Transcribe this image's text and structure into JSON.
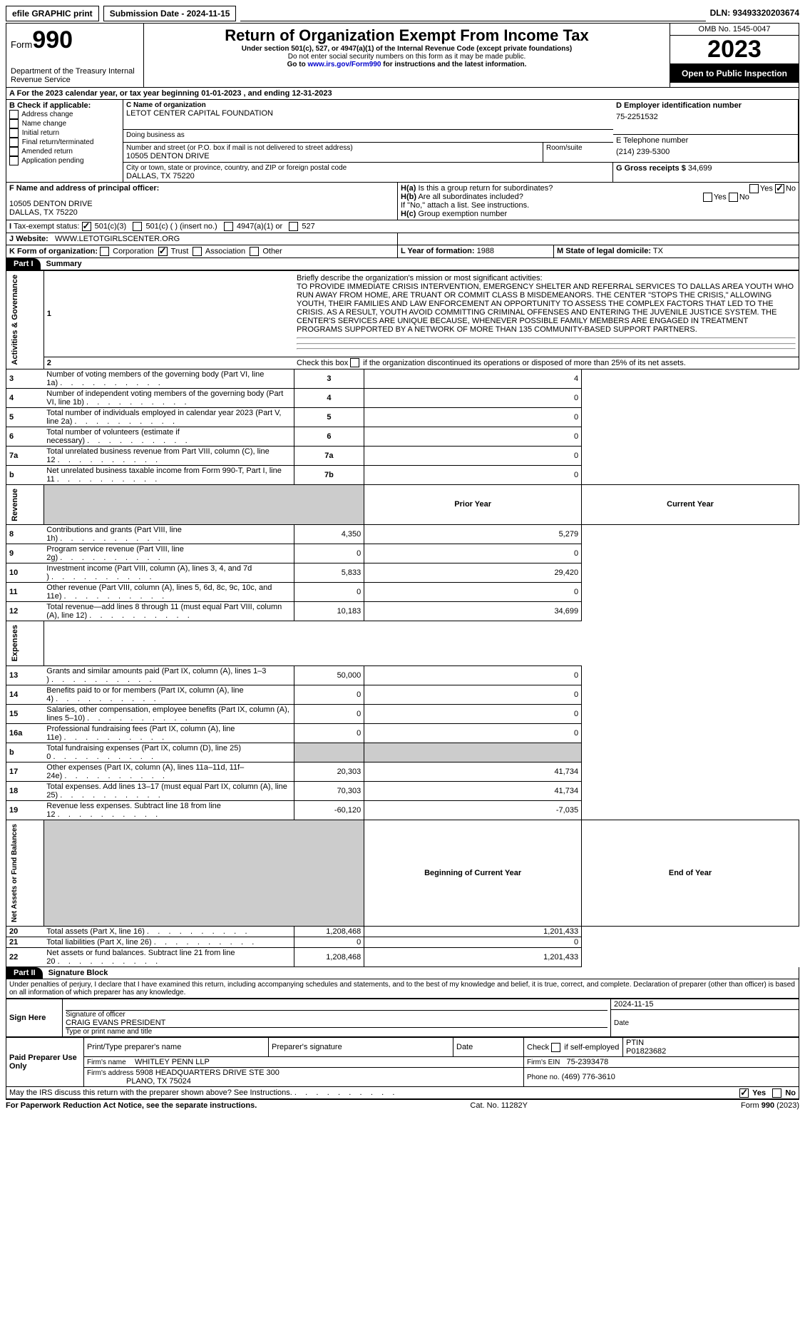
{
  "topbar": {
    "print": "efile GRAPHIC print",
    "sub": "Submission Date - 2024-11-15",
    "dln": "DLN: 93493320203674"
  },
  "header": {
    "form_small": "Form",
    "form_big": "990",
    "dept": "Department of the Treasury Internal Revenue Service",
    "title": "Return of Organization Exempt From Income Tax",
    "sub1": "Under section 501(c), 527, or 4947(a)(1) of the Internal Revenue Code (except private foundations)",
    "sub2": "Do not enter social security numbers on this form as it may be made public.",
    "sub3_pre": "Go to ",
    "sub3_link": "www.irs.gov/Form990",
    "sub3_post": " for instructions and the latest information.",
    "omb": "OMB No. 1545-0047",
    "year": "2023",
    "open": "Open to Public Inspection"
  },
  "A": {
    "text": "For the 2023 calendar year, or tax year beginning 01-01-2023     , and ending 12-31-2023"
  },
  "B": {
    "label": "B Check if applicable:",
    "items": [
      "Address change",
      "Name change",
      "Initial return",
      "Final return/terminated",
      "Amended return",
      "Application pending"
    ]
  },
  "C": {
    "name_lbl": "C Name of organization",
    "name": "LETOT CENTER CAPITAL FOUNDATION",
    "dba_lbl": "Doing business as",
    "dba": "",
    "addr_lbl": "Number and street (or P.O. box if mail is not delivered to street address)",
    "room_lbl": "Room/suite",
    "addr": "10505 DENTON DRIVE",
    "city_lbl": "City or town, state or province, country, and ZIP or foreign postal code",
    "city": "DALLAS, TX  75220"
  },
  "D": {
    "lbl": "D Employer identification number",
    "val": "75-2251532"
  },
  "E": {
    "lbl": "E Telephone number",
    "val": "(214) 239-5300"
  },
  "G": {
    "lbl": "G Gross receipts $",
    "val": "34,699"
  },
  "F": {
    "lbl": "F Name and address of principal officer:",
    "line1": "10505 DENTON DRIVE",
    "line2": "DALLAS, TX  75220"
  },
  "H": {
    "a": "Is this a group return for subordinates?",
    "b": "Are all subordinates included?",
    "note": "If \"No,\" attach a list. See instructions.",
    "c": "Group exemption number"
  },
  "I": {
    "lbl": "Tax-exempt status:",
    "opts": [
      "501(c)(3)",
      "501(c) (  ) (insert no.)",
      "4947(a)(1) or",
      "527"
    ]
  },
  "J": {
    "lbl": "Website:",
    "val": "WWW.LETOTGIRLSCENTER.ORG"
  },
  "K": {
    "lbl": "K Form of organization:",
    "opts": [
      "Corporation",
      "Trust",
      "Association",
      "Other"
    ]
  },
  "L": {
    "lbl": "L Year of formation:",
    "val": "1988"
  },
  "M": {
    "lbl": "M State of legal domicile:",
    "val": "TX"
  },
  "part1": {
    "num": "Part I",
    "title": "Summary"
  },
  "gov": {
    "label": "Activities & Governance",
    "q1_lbl": "Briefly describe the organization's mission or most significant activities:",
    "q1": "TO PROVIDE IMMEDIATE CRISIS INTERVENTION, EMERGENCY SHELTER AND REFERRAL SERVICES TO DALLAS AREA YOUTH WHO RUN AWAY FROM HOME, ARE TRUANT OR COMMIT CLASS B MISDEMEANORS. THE CENTER \"STOPS THE CRISIS,\" ALLOWING YOUTH, THEIR FAMILIES AND LAW ENFORCEMENT AN OPPORTUNITY TO ASSESS THE COMPLEX FACTORS THAT LED TO THE CRISIS. AS A RESULT, YOUTH AVOID COMMITTING CRIMINAL OFFENSES AND ENTERING THE JUVENILE JUSTICE SYSTEM. THE CENTER'S SERVICES ARE UNIQUE BECAUSE, WHENEVER POSSIBLE FAMILY MEMBERS ARE ENGAGED IN TREATMENT PROGRAMS SUPPORTED BY A NETWORK OF MORE THAN 135 COMMUNITY-BASED SUPPORT PARTNERS.",
    "q2": "Check this box      if the organization discontinued its operations or disposed of more than 25% of its net assets.",
    "rows": [
      {
        "n": "3",
        "t": "Number of voting members of the governing body (Part VI, line 1a)",
        "k": "3",
        "v": "4"
      },
      {
        "n": "4",
        "t": "Number of independent voting members of the governing body (Part VI, line 1b)",
        "k": "4",
        "v": "0"
      },
      {
        "n": "5",
        "t": "Total number of individuals employed in calendar year 2023 (Part V, line 2a)",
        "k": "5",
        "v": "0"
      },
      {
        "n": "6",
        "t": "Total number of volunteers (estimate if necessary)",
        "k": "6",
        "v": "0"
      },
      {
        "n": "7a",
        "t": "Total unrelated business revenue from Part VIII, column (C), line 12",
        "k": "7a",
        "v": "0"
      },
      {
        "n": "b",
        "t": "Net unrelated business taxable income from Form 990-T, Part I, line 11",
        "k": "7b",
        "v": "0"
      }
    ]
  },
  "cols": {
    "py": "Prior Year",
    "cy": "Current Year",
    "boy": "Beginning of Current Year",
    "eoy": "End of Year"
  },
  "rev": {
    "label": "Revenue",
    "rows": [
      {
        "n": "8",
        "t": "Contributions and grants (Part VIII, line 1h)",
        "py": "4,350",
        "cy": "5,279"
      },
      {
        "n": "9",
        "t": "Program service revenue (Part VIII, line 2g)",
        "py": "0",
        "cy": "0"
      },
      {
        "n": "10",
        "t": "Investment income (Part VIII, column (A), lines 3, 4, and 7d )",
        "py": "5,833",
        "cy": "29,420"
      },
      {
        "n": "11",
        "t": "Other revenue (Part VIII, column (A), lines 5, 6d, 8c, 9c, 10c, and 11e)",
        "py": "0",
        "cy": "0"
      },
      {
        "n": "12",
        "t": "Total revenue—add lines 8 through 11 (must equal Part VIII, column (A), line 12)",
        "py": "10,183",
        "cy": "34,699"
      }
    ]
  },
  "exp": {
    "label": "Expenses",
    "rows": [
      {
        "n": "13",
        "t": "Grants and similar amounts paid (Part IX, column (A), lines 1–3 )",
        "py": "50,000",
        "cy": "0"
      },
      {
        "n": "14",
        "t": "Benefits paid to or for members (Part IX, column (A), line 4)",
        "py": "0",
        "cy": "0"
      },
      {
        "n": "15",
        "t": "Salaries, other compensation, employee benefits (Part IX, column (A), lines 5–10)",
        "py": "0",
        "cy": "0"
      },
      {
        "n": "16a",
        "t": "Professional fundraising fees (Part IX, column (A), line 11e)",
        "py": "0",
        "cy": "0"
      },
      {
        "n": "b",
        "t": "Total fundraising expenses (Part IX, column (D), line 25) 0",
        "py": "grey",
        "cy": "grey"
      },
      {
        "n": "17",
        "t": "Other expenses (Part IX, column (A), lines 11a–11d, 11f–24e)",
        "py": "20,303",
        "cy": "41,734"
      },
      {
        "n": "18",
        "t": "Total expenses. Add lines 13–17 (must equal Part IX, column (A), line 25)",
        "py": "70,303",
        "cy": "41,734"
      },
      {
        "n": "19",
        "t": "Revenue less expenses. Subtract line 18 from line 12",
        "py": "-60,120",
        "cy": "-7,035"
      }
    ]
  },
  "net": {
    "label": "Net Assets or Fund Balances",
    "rows": [
      {
        "n": "20",
        "t": "Total assets (Part X, line 16)",
        "py": "1,208,468",
        "cy": "1,201,433"
      },
      {
        "n": "21",
        "t": "Total liabilities (Part X, line 26)",
        "py": "0",
        "cy": "0"
      },
      {
        "n": "22",
        "t": "Net assets or fund balances. Subtract line 21 from line 20",
        "py": "1,208,468",
        "cy": "1,201,433"
      }
    ]
  },
  "part2": {
    "num": "Part II",
    "title": "Signature Block",
    "decl": "Under penalties of perjury, I declare that I have examined this return, including accompanying schedules and statements, and to the best of my knowledge and belief, it is true, correct, and complete. Declaration of preparer (other than officer) is based on all information of which preparer has any knowledge."
  },
  "sign": {
    "here": "Sign Here",
    "sig_lbl": "Signature of officer",
    "date_lbl": "Date",
    "date": "2024-11-15",
    "name": "CRAIG EVANS PRESIDENT",
    "name_lbl": "Type or print name and title"
  },
  "paid": {
    "here": "Paid Preparer Use Only",
    "h": [
      "Print/Type preparer's name",
      "Preparer's signature",
      "Date",
      "Check       if self-employed",
      "PTIN"
    ],
    "ptin": "P01823682",
    "firm_lbl": "Firm's name",
    "firm": "WHITLEY PENN LLP",
    "ein_lbl": "Firm's EIN",
    "ein": "75-2393478",
    "addr_lbl": "Firm's address",
    "addr1": "5908 HEADQUARTERS DRIVE STE 300",
    "addr2": "PLANO, TX  75024",
    "ph_lbl": "Phone no.",
    "ph": "(469) 776-3610"
  },
  "discuss": "May the IRS discuss this return with the preparer shown above? See Instructions.",
  "footer": {
    "l": "For Paperwork Reduction Act Notice, see the separate instructions.",
    "c": "Cat. No. 11282Y",
    "r": "Form 990 (2023)"
  }
}
